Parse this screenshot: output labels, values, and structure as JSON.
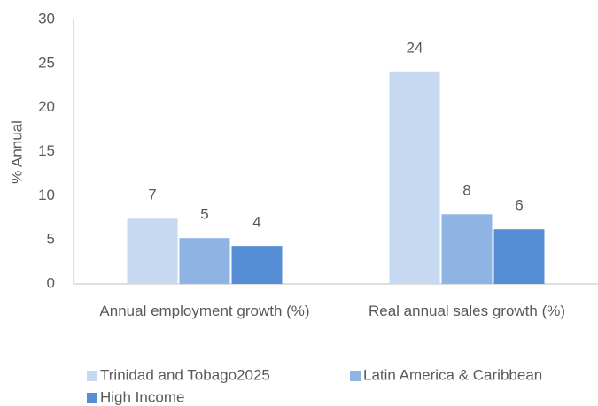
{
  "chart_data": {
    "type": "bar",
    "y_label": "% Annual",
    "categories": [
      "Annual employment growth (%)",
      "Real annual sales growth (%)"
    ],
    "series": [
      {
        "name": "Trinidad and Tobago2025",
        "color": "#c6d9f1",
        "values": [
          7.4,
          24.1
        ],
        "value_labels": [
          "7",
          "24"
        ]
      },
      {
        "name": "Latin America & Caribbean",
        "color": "#8eb4e3",
        "values": [
          5.2,
          7.9
        ],
        "value_labels": [
          "5",
          "8"
        ]
      },
      {
        "name": "High Income",
        "color": "#558ed5",
        "values": [
          4.3,
          6.2
        ],
        "value_labels": [
          "4",
          "6"
        ]
      }
    ],
    "ylim": [
      0,
      30
    ],
    "yticks": [
      0,
      5,
      10,
      15,
      20,
      25,
      30
    ],
    "grid": false
  }
}
